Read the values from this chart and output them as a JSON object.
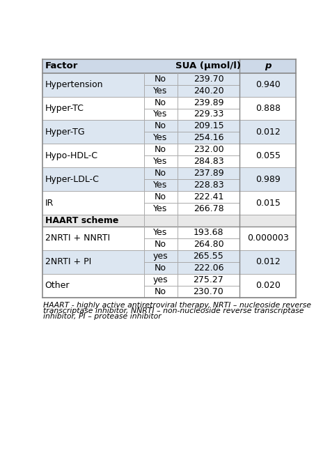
{
  "col_headers": [
    "Factor",
    "",
    "SUA (μmol/l)",
    "p"
  ],
  "rows": [
    {
      "factor": "Hypertension",
      "sub1_label": "No",
      "sub1_val": "239.70",
      "sub2_label": "Yes",
      "sub2_val": "240.20",
      "p": "0.940",
      "haart": false
    },
    {
      "factor": "Hyper-TC",
      "sub1_label": "No",
      "sub1_val": "239.89",
      "sub2_label": "Yes",
      "sub2_val": "229.33",
      "p": "0.888",
      "haart": false
    },
    {
      "factor": "Hyper-TG",
      "sub1_label": "No",
      "sub1_val": "209.15",
      "sub2_label": "Yes",
      "sub2_val": "254.16",
      "p": "0.012",
      "haart": false
    },
    {
      "factor": "Hypo-HDL-C",
      "sub1_label": "No",
      "sub1_val": "232.00",
      "sub2_label": "Yes",
      "sub2_val": "284.83",
      "p": "0.055",
      "haart": false
    },
    {
      "factor": "Hyper-LDL-C",
      "sub1_label": "No",
      "sub1_val": "237.89",
      "sub2_label": "Yes",
      "sub2_val": "228.83",
      "p": "0.989",
      "haart": false
    },
    {
      "factor": "IR",
      "sub1_label": "No",
      "sub1_val": "222.41",
      "sub2_label": "Yes",
      "sub2_val": "266.78",
      "p": "0.015",
      "haart": false
    },
    {
      "factor": "HAART scheme",
      "sub1_label": "",
      "sub1_val": "",
      "sub2_label": "",
      "sub2_val": "",
      "p": "",
      "haart": true
    },
    {
      "factor": "2NRTI + NNRTI",
      "sub1_label": "Yes",
      "sub1_val": "193.68",
      "sub2_label": "No",
      "sub2_val": "264.80",
      "p": "0.000003",
      "haart": false
    },
    {
      "factor": "2NRTI + PI",
      "sub1_label": "yes",
      "sub1_val": "265.55",
      "sub2_label": "No",
      "sub2_val": "222.06",
      "p": "0.012",
      "haart": false
    },
    {
      "factor": "Other",
      "sub1_label": "yes",
      "sub1_val": "275.27",
      "sub2_label": "No",
      "sub2_val": "230.70",
      "p": "0.020",
      "haart": false
    }
  ],
  "footnote_lines": [
    "HAART - highly active antiretroviral therapy, NRTI – nucleoside reverse",
    "transcriptase inhibitor, NNRTI – non-nucleoside reverse transcriptase",
    "inhibitor, PI – protease inhibitor"
  ],
  "header_bg": "#cdd9e8",
  "row_bg_light": "#dce6f1",
  "row_bg_white": "#ffffff",
  "haart_bg": "#e8e8e8",
  "border_color": "#888888",
  "line_color": "#aaaaaa",
  "header_font_size": 9.5,
  "cell_font_size": 9.0,
  "footnote_font_size": 7.8,
  "fig_width": 4.74,
  "fig_height": 6.8,
  "dpi": 100
}
